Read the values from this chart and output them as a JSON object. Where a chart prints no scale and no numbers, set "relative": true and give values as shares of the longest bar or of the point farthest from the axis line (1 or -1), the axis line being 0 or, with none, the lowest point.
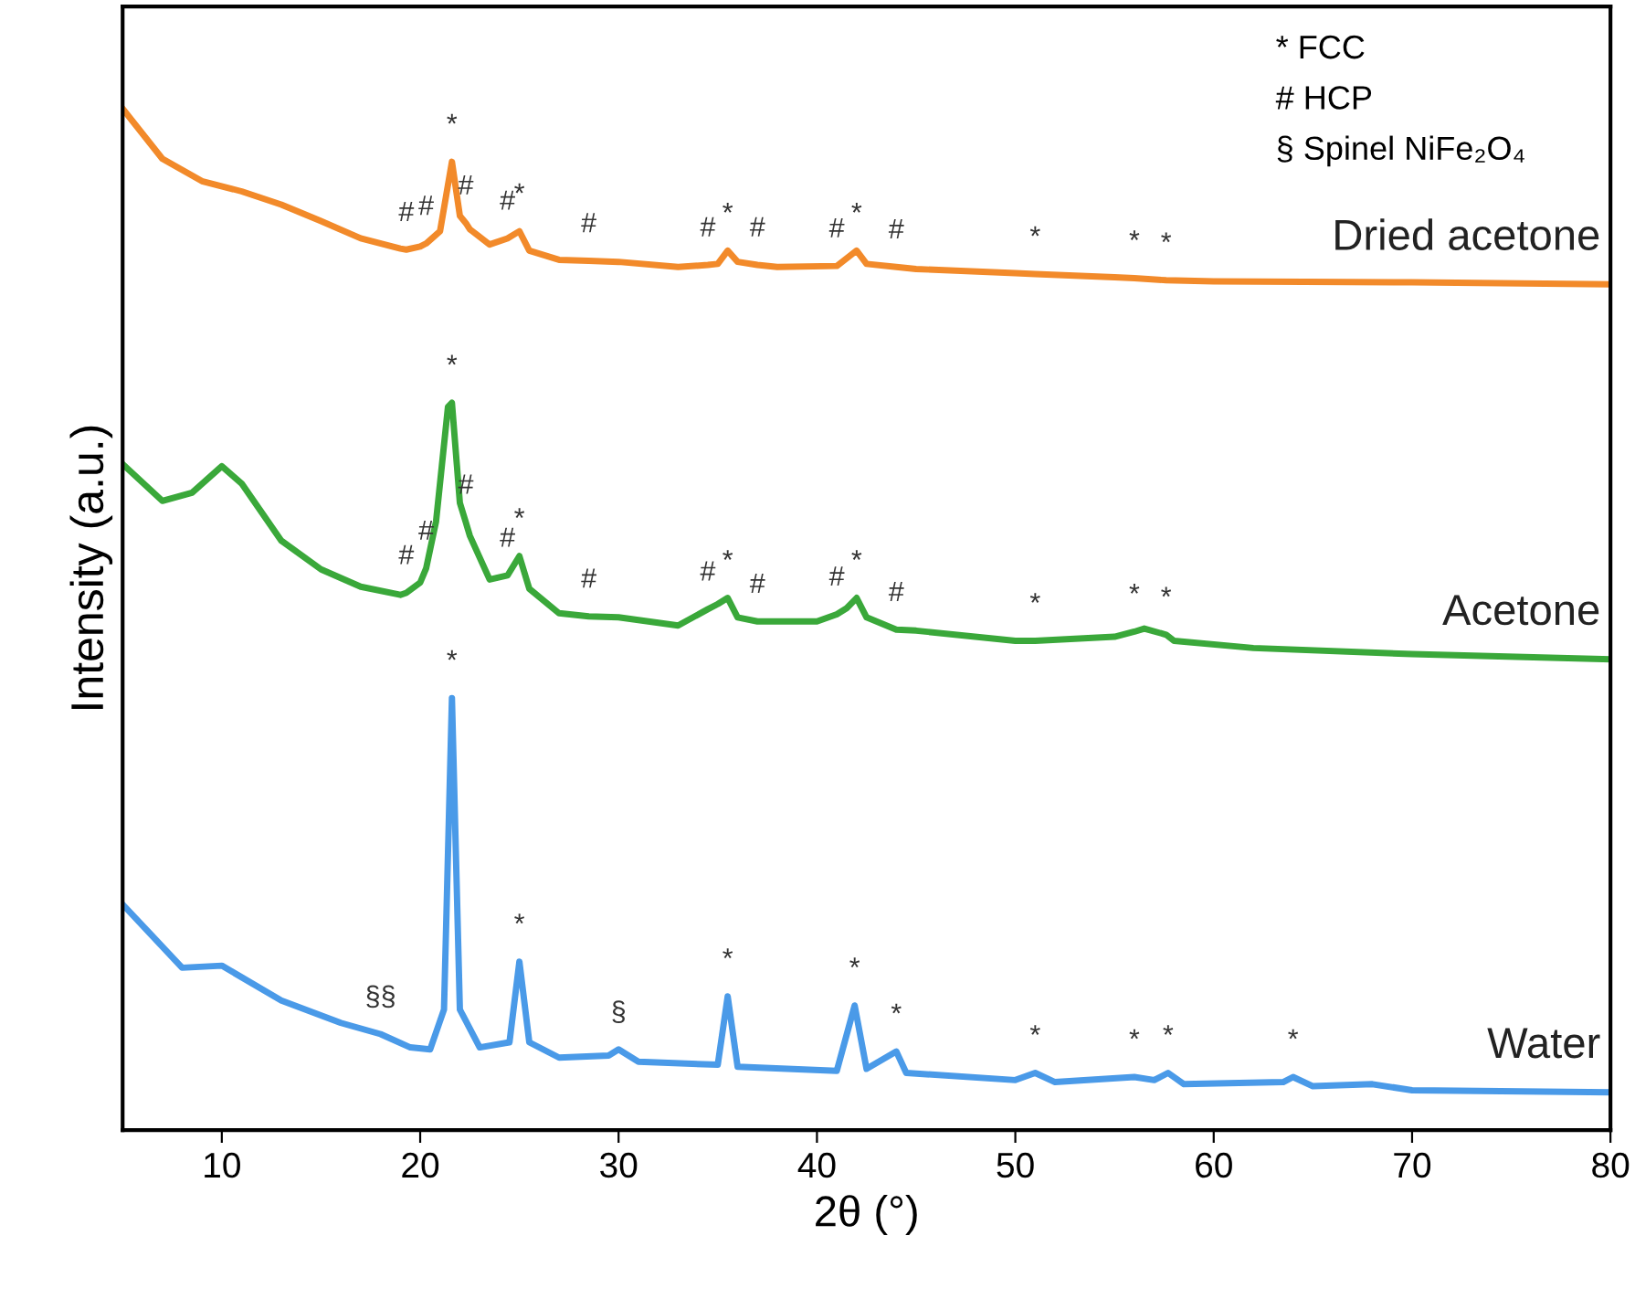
{
  "chart_data": {
    "type": "line",
    "relative": true,
    "xlabel": "2θ (°)",
    "ylabel": "Intensity (a.u.)",
    "xlim": [
      5,
      80
    ],
    "xticks": [
      10,
      20,
      30,
      40,
      50,
      60,
      70,
      80
    ],
    "grid": false,
    "legend": false,
    "line_style": "solid",
    "marker": "none",
    "series": [
      {
        "name": "Dried acetone",
        "color": "#f28a2a",
        "x": [
          5,
          7,
          9,
          11,
          13,
          15,
          17,
          19,
          19.3,
          20,
          20.3,
          21,
          21.6,
          22,
          22.3,
          22.5,
          23.5,
          24.4,
          25,
          25.5,
          27,
          28.5,
          30,
          33,
          34.5,
          35,
          35.5,
          36,
          37,
          38,
          41,
          42,
          42.5,
          44,
          45,
          50,
          51,
          55,
          56,
          57.6,
          60,
          70,
          80
        ],
        "values": [
          1.0,
          0.951,
          0.929,
          0.919,
          0.906,
          0.89,
          0.873,
          0.863,
          0.862,
          0.865,
          0.868,
          0.88,
          0.948,
          0.895,
          0.888,
          0.882,
          0.867,
          0.873,
          0.88,
          0.861,
          0.852,
          0.851,
          0.85,
          0.845,
          0.847,
          0.848,
          0.861,
          0.85,
          0.847,
          0.845,
          0.846,
          0.861,
          0.848,
          0.845,
          0.843,
          0.839,
          0.838,
          0.835,
          0.834,
          0.832,
          0.831,
          0.83,
          0.828
        ]
      },
      {
        "name": "Acetone",
        "color": "#3aa83a",
        "x": [
          5,
          7,
          8.5,
          10,
          11,
          13,
          15,
          17,
          19,
          19.3,
          20,
          20.3,
          20.8,
          21.4,
          21.6,
          22,
          22.3,
          22.5,
          23.5,
          24.4,
          25,
          25.5,
          27,
          28.5,
          30,
          33,
          34.5,
          35,
          35.5,
          36,
          37,
          40,
          41,
          41.5,
          42,
          42.5,
          44,
          45,
          50,
          51,
          55,
          56,
          56.5,
          57.6,
          58,
          62,
          70,
          80
        ],
        "values": [
          0.652,
          0.616,
          0.624,
          0.65,
          0.633,
          0.577,
          0.549,
          0.532,
          0.524,
          0.526,
          0.536,
          0.55,
          0.596,
          0.708,
          0.712,
          0.614,
          0.595,
          0.582,
          0.539,
          0.543,
          0.562,
          0.53,
          0.506,
          0.503,
          0.502,
          0.494,
          0.51,
          0.515,
          0.521,
          0.502,
          0.498,
          0.498,
          0.505,
          0.511,
          0.521,
          0.502,
          0.49,
          0.489,
          0.479,
          0.479,
          0.483,
          0.488,
          0.491,
          0.485,
          0.479,
          0.472,
          0.466,
          0.461
        ]
      },
      {
        "name": "Water",
        "color": "#4a9ae8",
        "x": [
          5,
          8,
          10,
          13,
          16,
          18,
          19.5,
          20.5,
          21.2,
          21.6,
          22,
          23,
          24.5,
          25,
          25.5,
          27,
          29.5,
          30,
          31,
          35,
          35.5,
          36,
          41,
          41.9,
          42.5,
          44,
          44.5,
          50,
          51,
          52,
          56,
          57,
          57.7,
          58.5,
          63.5,
          64,
          65,
          68,
          70,
          80
        ],
        "values": [
          0.221,
          0.159,
          0.161,
          0.127,
          0.105,
          0.094,
          0.081,
          0.079,
          0.118,
          0.423,
          0.118,
          0.081,
          0.086,
          0.165,
          0.086,
          0.071,
          0.073,
          0.079,
          0.067,
          0.064,
          0.131,
          0.062,
          0.058,
          0.122,
          0.06,
          0.077,
          0.056,
          0.049,
          0.056,
          0.047,
          0.052,
          0.049,
          0.056,
          0.045,
          0.047,
          0.052,
          0.043,
          0.045,
          0.039,
          0.037
        ]
      }
    ],
    "annotations": [
      "* FCC",
      "# HCP",
      "§ Spinel NiFe₂O₄",
      {
        "text": "#",
        "x": 19.3,
        "y": 0.862
      },
      {
        "text": "#",
        "x": 20.3,
        "y": 0.868
      },
      {
        "text": "*",
        "x": 21.6,
        "y": 0.948
      },
      {
        "text": "#",
        "x": 22.3,
        "y": 0.888
      },
      {
        "text": "#",
        "x": 24.4,
        "y": 0.873
      },
      {
        "text": "*",
        "x": 25,
        "y": 0.88
      },
      {
        "text": "#",
        "x": 28.5,
        "y": 0.851
      },
      {
        "text": "#",
        "x": 34.5,
        "y": 0.847
      },
      {
        "text": "*",
        "x": 35.5,
        "y": 0.861
      },
      {
        "text": "#",
        "x": 37,
        "y": 0.847
      },
      {
        "text": "#",
        "x": 41,
        "y": 0.846
      },
      {
        "text": "*",
        "x": 42,
        "y": 0.861
      },
      {
        "text": "#",
        "x": 44,
        "y": 0.845
      },
      {
        "text": "*",
        "x": 51,
        "y": 0.838
      },
      {
        "text": "*",
        "x": 56,
        "y": 0.834
      },
      {
        "text": "*",
        "x": 57.6,
        "y": 0.832
      },
      {
        "text": "#",
        "x": 19.3,
        "y": 0.526
      },
      {
        "text": "#",
        "x": 20.3,
        "y": 0.55
      },
      {
        "text": "*",
        "x": 21.6,
        "y": 0.712
      },
      {
        "text": "#",
        "x": 22.3,
        "y": 0.595
      },
      {
        "text": "#",
        "x": 24.4,
        "y": 0.543
      },
      {
        "text": "*",
        "x": 25,
        "y": 0.562
      },
      {
        "text": "#",
        "x": 28.5,
        "y": 0.503
      },
      {
        "text": "#",
        "x": 34.5,
        "y": 0.51
      },
      {
        "text": "*",
        "x": 35.5,
        "y": 0.521
      },
      {
        "text": "#",
        "x": 37,
        "y": 0.498
      },
      {
        "text": "#",
        "x": 41,
        "y": 0.505
      },
      {
        "text": "*",
        "x": 42,
        "y": 0.521
      },
      {
        "text": "#",
        "x": 44,
        "y": 0.49
      },
      {
        "text": "*",
        "x": 51,
        "y": 0.479
      },
      {
        "text": "*",
        "x": 56,
        "y": 0.488
      },
      {
        "text": "*",
        "x": 57.6,
        "y": 0.485
      },
      {
        "text": "§§",
        "x": 18,
        "y": 0.094
      },
      {
        "text": "*",
        "x": 21.6,
        "y": 0.423
      },
      {
        "text": "*",
        "x": 25,
        "y": 0.165
      },
      {
        "text": "§",
        "x": 30,
        "y": 0.079
      },
      {
        "text": "*",
        "x": 35.5,
        "y": 0.131
      },
      {
        "text": "*",
        "x": 41.9,
        "y": 0.122
      },
      {
        "text": "*",
        "x": 44,
        "y": 0.077
      },
      {
        "text": "*",
        "x": 51,
        "y": 0.056
      },
      {
        "text": "*",
        "x": 56,
        "y": 0.052
      },
      {
        "text": "*",
        "x": 57.7,
        "y": 0.056
      },
      {
        "text": "*",
        "x": 64,
        "y": 0.052
      }
    ]
  }
}
